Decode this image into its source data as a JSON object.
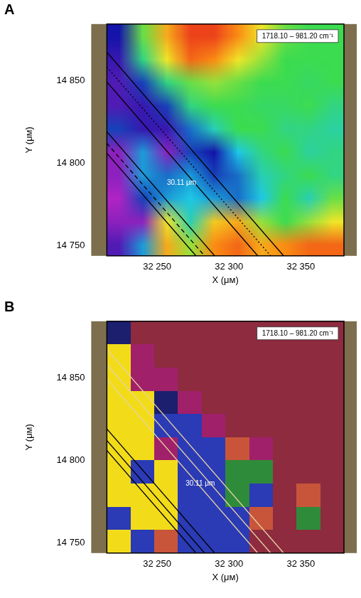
{
  "chart_data": [
    {
      "panel": "A",
      "type": "heatmap",
      "title": "1718.10 – 981.20 cm⁻¹",
      "x_label": "X (μм)",
      "y_label": "Y (μм)",
      "xlim": [
        32215,
        32380
      ],
      "ylim": [
        14744,
        14884
      ],
      "xticks": [
        {
          "value": 32250,
          "label": "32 250"
        },
        {
          "value": 32300,
          "label": "32 300"
        },
        {
          "value": 32350,
          "label": "32 350"
        }
      ],
      "yticks": [
        {
          "value": 14750,
          "label": "14 750"
        },
        {
          "value": 14800,
          "label": "14 800"
        },
        {
          "value": 14850,
          "label": "14 850"
        }
      ],
      "grid": false,
      "value_range": [
        0,
        1
      ],
      "cells": [
        [
          0.15,
          0.55,
          0.8,
          0.95,
          0.95,
          0.85,
          0.7,
          0.55,
          0.5,
          0.5
        ],
        [
          0.12,
          0.45,
          0.7,
          0.9,
          0.85,
          0.7,
          0.6,
          0.5,
          0.5,
          0.5
        ],
        [
          0.1,
          0.2,
          0.45,
          0.55,
          0.6,
          0.55,
          0.5,
          0.5,
          0.48,
          0.5
        ],
        [
          0.1,
          0.12,
          0.2,
          0.45,
          0.5,
          0.5,
          0.48,
          0.48,
          0.5,
          0.45
        ],
        [
          0.2,
          0.12,
          0.12,
          0.25,
          0.4,
          0.5,
          0.5,
          0.45,
          0.45,
          0.42
        ],
        [
          0.05,
          0.3,
          0.05,
          0.2,
          0.15,
          0.35,
          0.45,
          0.5,
          0.42,
          0.45
        ],
        [
          0.05,
          0.3,
          0.25,
          0.3,
          0.2,
          0.25,
          0.4,
          0.45,
          0.5,
          0.45
        ],
        [
          0.02,
          0.2,
          0.3,
          0.35,
          0.3,
          0.25,
          0.35,
          0.5,
          0.4,
          0.55
        ],
        [
          0.05,
          0.05,
          0.7,
          0.4,
          0.75,
          0.8,
          0.6,
          0.5,
          0.6,
          0.7
        ],
        [
          0.1,
          0.3,
          0.8,
          0.6,
          0.85,
          0.9,
          0.8,
          0.85,
          0.9,
          0.9
        ]
      ],
      "lines": [
        {
          "x": [
            32215,
            32338
          ],
          "y": [
            14867,
            14744
          ],
          "color": "#000000",
          "line_style": "solid"
        },
        {
          "x": [
            32215,
            32329
          ],
          "y": [
            14858,
            14744
          ],
          "color": "#000000",
          "line_style": "dotted"
        },
        {
          "x": [
            32215,
            32320
          ],
          "y": [
            14849,
            14744
          ],
          "color": "#000000",
          "line_style": "solid"
        },
        {
          "x": [
            32215,
            32290
          ],
          "y": [
            14819,
            14744
          ],
          "color": "#000000",
          "line_style": "solid"
        },
        {
          "x": [
            32215,
            32283
          ],
          "y": [
            14812,
            14744
          ],
          "color": "#000000",
          "line_style": "dashed"
        },
        {
          "x": [
            32215,
            32277
          ],
          "y": [
            14806,
            14744
          ],
          "color": "#000000",
          "line_style": "solid"
        }
      ],
      "annotations": [
        {
          "text": "30.11 μm",
          "x": 32267,
          "y": 14788
        }
      ]
    },
    {
      "panel": "B",
      "type": "class_map",
      "title": "1718.10 – 981.20 cm⁻¹",
      "x_label": "X (μм)",
      "y_label": "Y (μм)",
      "xlim": [
        32215,
        32380
      ],
      "ylim": [
        14744,
        14884
      ],
      "xticks": [
        {
          "value": 32250,
          "label": "32 250"
        },
        {
          "value": 32300,
          "label": "32 300"
        },
        {
          "value": 32350,
          "label": "32 350"
        }
      ],
      "yticks": [
        {
          "value": 14750,
          "label": "14 750"
        },
        {
          "value": 14800,
          "label": "14 800"
        },
        {
          "value": 14850,
          "label": "14 850"
        }
      ],
      "grid": false,
      "colors": [
        "#8e2b3f",
        "#f2dc1a",
        "#2b3ab5",
        "#2e8b3a",
        "#a0206a",
        "#c8553a",
        "#1b1f6e"
      ],
      "cells": [
        [
          6,
          0,
          0,
          0,
          0,
          0,
          0,
          0,
          0,
          0
        ],
        [
          1,
          4,
          0,
          0,
          0,
          0,
          0,
          0,
          0,
          0
        ],
        [
          1,
          4,
          4,
          0,
          0,
          0,
          0,
          0,
          0,
          0
        ],
        [
          1,
          1,
          6,
          4,
          0,
          0,
          0,
          0,
          0,
          0
        ],
        [
          1,
          1,
          2,
          2,
          4,
          0,
          0,
          0,
          0,
          0
        ],
        [
          1,
          1,
          4,
          2,
          2,
          5,
          4,
          0,
          0,
          0
        ],
        [
          1,
          2,
          1,
          2,
          2,
          3,
          3,
          0,
          0,
          0
        ],
        [
          1,
          1,
          1,
          2,
          2,
          3,
          2,
          0,
          5,
          0
        ],
        [
          2,
          1,
          1,
          2,
          2,
          2,
          5,
          0,
          3,
          0
        ],
        [
          1,
          2,
          5,
          2,
          2,
          2,
          0,
          0,
          0,
          0
        ]
      ],
      "lines": [
        {
          "x": [
            32215,
            32338
          ],
          "y": [
            14867,
            14744
          ],
          "color": "#e6d3a3",
          "line_style": "solid"
        },
        {
          "x": [
            32215,
            32329
          ],
          "y": [
            14858,
            14744
          ],
          "color": "#e6d3a3",
          "line_style": "solid"
        },
        {
          "x": [
            32215,
            32320
          ],
          "y": [
            14849,
            14744
          ],
          "color": "#e6d3a3",
          "line_style": "solid"
        },
        {
          "x": [
            32215,
            32290
          ],
          "y": [
            14819,
            14744
          ],
          "color": "#000000",
          "line_style": "solid"
        },
        {
          "x": [
            32215,
            32283
          ],
          "y": [
            14812,
            14744
          ],
          "color": "#000000",
          "line_style": "solid"
        },
        {
          "x": [
            32215,
            32277
          ],
          "y": [
            14806,
            14744
          ],
          "color": "#000000",
          "line_style": "solid"
        }
      ],
      "annotations": [
        {
          "text": "30.11 μm",
          "x": 32280,
          "y": 14786
        }
      ]
    }
  ]
}
